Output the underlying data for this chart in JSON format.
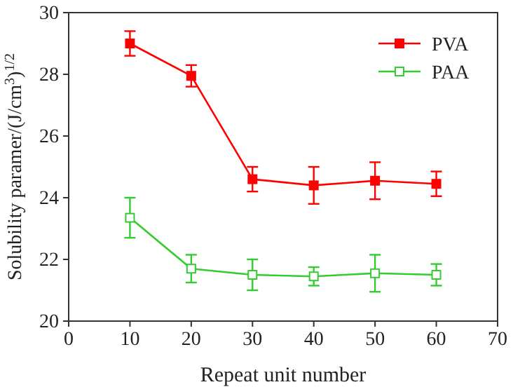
{
  "chart_data": {
    "type": "line",
    "xlabel": "Repeat unit number",
    "ylabel": "Solubility paramer/(J/cm$^{3}$)$^{1/2}$",
    "x": [
      10,
      20,
      30,
      40,
      50,
      60
    ],
    "series": [
      {
        "name": "PVA",
        "color": "#ff0000",
        "marker": "square",
        "values": [
          29.0,
          27.95,
          24.6,
          24.4,
          24.55,
          24.45
        ],
        "errors": [
          0.4,
          0.35,
          0.4,
          0.6,
          0.6,
          0.4
        ]
      },
      {
        "name": "PAA",
        "color": "#33cc33",
        "marker": "square",
        "values": [
          23.35,
          21.7,
          21.5,
          21.45,
          21.55,
          21.5
        ],
        "errors": [
          0.65,
          0.45,
          0.5,
          0.3,
          0.6,
          0.35
        ]
      }
    ],
    "xlim": [
      0,
      70
    ],
    "xticks": [
      0,
      10,
      20,
      30,
      40,
      50,
      60,
      70
    ],
    "ylim": [
      20,
      30
    ],
    "yticks": [
      20,
      22,
      24,
      26,
      28,
      30
    ],
    "legend": "top right",
    "grid": false
  }
}
